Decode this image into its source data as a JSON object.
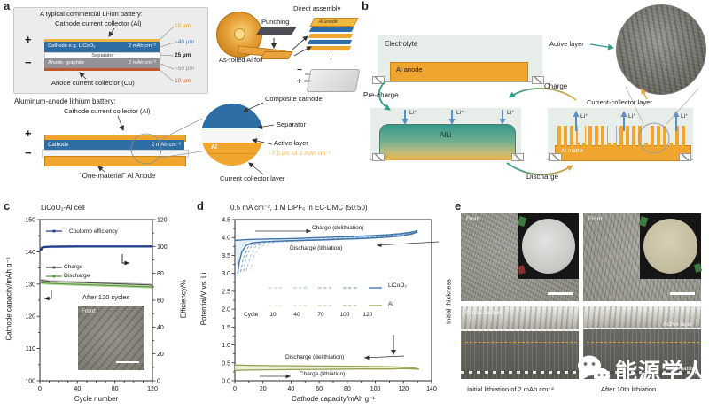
{
  "panels": {
    "a": {
      "label": "a",
      "commercial": {
        "title": "A typical commercial Li-ion battery:",
        "cathode_collector": "Cathode current collector (Al)",
        "anode_collector": "Anode current collector (Cu)",
        "cathode_layer": "Cathode e.g. LiCoO₂",
        "cathode_loading": "2 mAh cm⁻²",
        "separator": "Separator",
        "anode_layer": "Anode, graphite",
        "anode_loading": "2 mAh cm⁻²",
        "plus": "+",
        "minus": "−",
        "thicknesses": [
          {
            "text": "15 µm",
            "color": "#e8a21f"
          },
          {
            "text": "~40 µm",
            "color": "#4a7fb5"
          },
          {
            "text": "25 µm",
            "color": "#222222"
          },
          {
            "text": "~50 µm",
            "color": "#8a8a8a"
          },
          {
            "text": "10 µm",
            "color": "#c05a2e"
          }
        ]
      },
      "process": {
        "punching": "Punching",
        "as_rolled": "As-rolled Al foil",
        "direct_assembly": "Direct assembly",
        "al_anode": "Al anode",
        "minus": "−",
        "plus": "+"
      },
      "aluminum": {
        "title": "Aluminum-anode lithium battery:",
        "cathode_collector": "Cathode current collector (Al)",
        "cathode": "Cathode",
        "loading": "2 mAh cm⁻²",
        "one_material": "“One-material” Al Anode",
        "plus": "+",
        "minus": "−"
      },
      "inset": {
        "composite_cathode": "Composite cathode",
        "separator": "Separator",
        "active_layer": "Active layer",
        "thickness_note": "~7.5 µm for 2 mAh cm⁻²",
        "al": "Al",
        "current_collector": "Current collector layer"
      }
    },
    "b": {
      "label": "b",
      "electrolyte": "Electrolyte",
      "al_anode": "Al anode",
      "pre_charge": "Pre-charge",
      "charge": "Charge",
      "discharge": "Discharge",
      "li_ion": "Li⁺",
      "alli": "AlLi",
      "al_matrix": "Al matrix",
      "active_layer": "Active layer",
      "current_collector": "Current-collector layer"
    },
    "e": {
      "label": "e",
      "front": "Front",
      "cross_section": "Cross-section",
      "active_layer": "Active layer",
      "al_matrix": "Al matrix",
      "initial_thickness": "Initial thickness",
      "caption_left": "Initial lithiation of 2 mAh cm⁻²",
      "caption_right": "After 10th lithiation"
    }
  },
  "watermark": {
    "text": "能源学人",
    "icon": "wechat-icon",
    "color": "#ffffff"
  },
  "chart_data": [
    {
      "type": "line",
      "panel": "c",
      "title": "LiCoO₂-Al cell",
      "xlabel": "Cycle number",
      "ylabel_left": "Cathode capacity/mAh g⁻¹",
      "ylabel_right": "Efficiency/%",
      "xlim": [
        0,
        120
      ],
      "xticks": [
        0,
        40,
        80,
        120
      ],
      "ylim_left": [
        100,
        150
      ],
      "yticks_left": [
        100,
        110,
        120,
        130,
        140,
        150
      ],
      "ylim_right": [
        0,
        120
      ],
      "yticks_right": [
        0,
        20,
        40,
        60,
        80,
        100,
        120
      ],
      "grid": false,
      "series": [
        {
          "name": "Coulomb efficiency",
          "axis": "right",
          "color": "#24418e",
          "width": 2.4,
          "x": [
            1,
            2,
            4,
            7,
            12,
            20,
            40,
            60,
            80,
            100,
            120
          ],
          "y": [
            96.5,
            99.0,
            99.5,
            99.7,
            99.8,
            99.9,
            100,
            100,
            100,
            100,
            100
          ]
        },
        {
          "name": "Charge",
          "axis": "left",
          "color": "#4d4d4d",
          "width": 1.1,
          "halo": "#c4c4c4",
          "x": [
            1,
            10,
            20,
            40,
            60,
            80,
            100,
            120
          ],
          "y": [
            131.2,
            130.8,
            130.7,
            130.5,
            130.3,
            130.1,
            129.9,
            129.7
          ]
        },
        {
          "name": "Discharge",
          "axis": "left",
          "color": "#58973f",
          "width": 1.1,
          "halo": "#bcd9a4",
          "x": [
            1,
            10,
            20,
            40,
            60,
            80,
            100,
            120
          ],
          "y": [
            130.4,
            130.2,
            130.1,
            129.9,
            129.7,
            129.5,
            129.3,
            129.1
          ]
        }
      ],
      "annotation": "After 120 cycles",
      "inset_label": "Front"
    },
    {
      "type": "line",
      "panel": "d",
      "title": "0.5 mA cm⁻², 1 M LiPF₆ in EC-DMC (50:50)",
      "xlabel": "Cathode capacity/mAh g⁻¹",
      "ylabel": "Potential/V vs. Li",
      "xlim": [
        0,
        140
      ],
      "xticks": [
        0,
        20,
        40,
        60,
        80,
        100,
        120,
        140
      ],
      "ylim": [
        0,
        4.5
      ],
      "yticks": [
        "0.0",
        "0.5",
        "1.0",
        "1.5",
        "2.0",
        "2.5",
        "3.0",
        "3.5",
        "4.0",
        "4.5"
      ],
      "grid": false,
      "series": [
        {
          "name": "LiCoO₂ charge (delithiation)",
          "color": "#3f74ab",
          "width": 1.4,
          "x": [
            0,
            3,
            8,
            15,
            25,
            40,
            55,
            70,
            85,
            100,
            110,
            118,
            124,
            128,
            130
          ],
          "y": [
            3.92,
            3.93,
            3.94,
            3.95,
            3.96,
            3.97,
            3.99,
            4.01,
            4.03,
            4.06,
            4.08,
            4.11,
            4.14,
            4.17,
            4.19
          ]
        },
        {
          "name": "LiCoO₂ discharge (lithiation)",
          "color": "#3f74ab",
          "width": 1.4,
          "x": [
            130,
            126,
            118,
            105,
            90,
            75,
            60,
            45,
            30,
            20,
            12,
            8,
            5,
            3,
            2
          ],
          "y": [
            4.16,
            4.1,
            4.04,
            4.0,
            3.97,
            3.95,
            3.93,
            3.92,
            3.9,
            3.88,
            3.85,
            3.78,
            3.6,
            3.3,
            3.0
          ]
        },
        {
          "name": "Al discharge (delithiation)",
          "color": "#9aa050",
          "width": 1.3,
          "x": [
            0,
            10,
            30,
            60,
            90,
            110,
            120,
            127,
            131
          ],
          "y": [
            0.44,
            0.43,
            0.42,
            0.41,
            0.4,
            0.39,
            0.38,
            0.36,
            0.33
          ]
        },
        {
          "name": "Al charge (lithiation)",
          "color": "#9aa050",
          "width": 1.3,
          "x": [
            0,
            10,
            30,
            60,
            90,
            110,
            120,
            127,
            131
          ],
          "y": [
            0.29,
            0.3,
            0.31,
            0.32,
            0.33,
            0.33,
            0.34,
            0.33,
            0.32
          ]
        }
      ],
      "cycle_curves": [
        {
          "cycle": 10,
          "color": "#b9cfe4",
          "x": [
            128,
            110,
            90,
            70,
            50,
            35,
            25,
            18,
            14,
            11
          ],
          "y": [
            4.12,
            4.02,
            3.97,
            3.94,
            3.91,
            3.88,
            3.84,
            3.75,
            3.5,
            3.1
          ]
        },
        {
          "cycle": 40,
          "color": "#9dbcd9",
          "x": [
            129,
            110,
            90,
            70,
            50,
            32,
            22,
            15,
            11,
            8
          ],
          "y": [
            4.13,
            4.03,
            3.98,
            3.95,
            3.92,
            3.89,
            3.85,
            3.76,
            3.48,
            3.05
          ]
        },
        {
          "cycle": 70,
          "color": "#81a9cd",
          "x": [
            129,
            110,
            90,
            70,
            48,
            30,
            18,
            12,
            8,
            6
          ],
          "y": [
            4.14,
            4.04,
            3.99,
            3.96,
            3.93,
            3.9,
            3.86,
            3.77,
            3.45,
            3.02
          ]
        },
        {
          "cycle": 100,
          "color": "#6597c2",
          "x": [
            130,
            112,
            92,
            70,
            45,
            28,
            15,
            10,
            6,
            4
          ],
          "y": [
            4.15,
            4.06,
            4.0,
            3.96,
            3.93,
            3.9,
            3.87,
            3.78,
            3.42,
            3.0
          ]
        }
      ],
      "legend": {
        "items": [
          {
            "label": "LiCoO₂",
            "color": "#3f74ab"
          },
          {
            "label": "Al",
            "color": "#9aa050"
          }
        ],
        "cycle_label": "Cycle",
        "cycles": [
          10,
          40,
          70,
          100,
          120
        ]
      },
      "legend_al_shades": [
        "#e3e5c9",
        "#d0d3ad",
        "#bcc08f",
        "#a9ae73"
      ],
      "annotations": {
        "charge_top": "Charge (delithiation)",
        "discharge_top": "Discharge (lithiation)",
        "discharge_bottom": "Discharge (delithiation)",
        "charge_bottom": "Charge (lithiation)"
      }
    }
  ]
}
